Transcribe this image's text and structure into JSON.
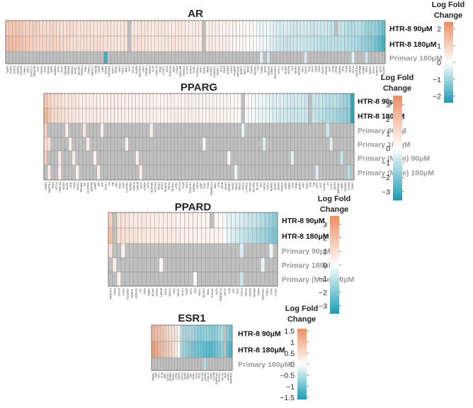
{
  "figure": {
    "colorscale": {
      "low": "#1a9bb3",
      "mid": "#ffffff",
      "high": "#ed8e62",
      "missing": "#c0c0c0"
    }
  },
  "chart_data": [
    {
      "type": "heatmap",
      "title": "AR",
      "rows": [
        "HTR-8 90μM",
        "HTR-8 180μM",
        "Primary 180μM"
      ],
      "primary_rows": [
        2
      ],
      "n_columns": 112,
      "zlim": [
        -2.4,
        2.4
      ],
      "colorbar": {
        "title": [
          "Log Fold",
          "Change"
        ],
        "ticks": [
          2,
          1,
          0,
          -1,
          -2
        ],
        "tick_labels": [
          "2",
          "1",
          "0",
          "−1",
          "−2"
        ]
      },
      "anchor_values": {
        "row0": [
          [
            0,
            1.2
          ],
          [
            10,
            0.8
          ],
          [
            25,
            0.55
          ],
          [
            45,
            0.45
          ],
          [
            60,
            0.3
          ],
          [
            70,
            0.15
          ],
          [
            74,
            -0.1
          ],
          [
            82,
            -0.4
          ],
          [
            95,
            -0.55
          ],
          [
            104,
            -0.8
          ],
          [
            108,
            -1.1
          ],
          [
            111,
            -1.5
          ]
        ],
        "row1": [
          [
            0,
            1.4
          ],
          [
            10,
            0.9
          ],
          [
            25,
            0.6
          ],
          [
            45,
            0.5
          ],
          [
            60,
            0.35
          ],
          [
            70,
            0.2
          ],
          [
            74,
            -0.1
          ],
          [
            82,
            -0.5
          ],
          [
            95,
            -0.65
          ],
          [
            104,
            -0.9
          ],
          [
            108,
            -1.3
          ],
          [
            111,
            -2.0
          ]
        ]
      },
      "primary_cells": [
        [
          29,
          -2.0
        ],
        [
          75,
          -0.3
        ],
        [
          77,
          -0.5
        ],
        [
          88,
          -0.4
        ],
        [
          102,
          -0.3
        ],
        [
          106,
          -0.6
        ]
      ],
      "gaps": [
        [
          0,
          36
        ],
        [
          0,
          58
        ],
        [
          0,
          97
        ],
        [
          1,
          36
        ],
        [
          1,
          58
        ]
      ],
      "column_labels": [
        "SIRPT",
        "PSNT2",
        "COX19",
        "DHRS3",
        "COL5A2",
        "DKKL1",
        "LRP11",
        "KLHDC10",
        "TMEM168",
        "STX7",
        "PDCD5",
        "CDK2",
        "DFNA5",
        "AHRR",
        "ADAM22",
        "EDN2",
        "SNAI2",
        "FAM46B",
        "ZNF689",
        "MICAL3",
        "OVOL1",
        "SEC24D",
        "POLR1A",
        "TOB1",
        "TPRG1",
        "MAN1C1",
        "UNC5B",
        "SGCE",
        "NAB2",
        "SGMS2",
        "TNFRSF9",
        "SPRY1",
        "KRT80",
        "HES1",
        "FOXD1",
        "NRP1",
        "IRX3",
        "KLF13",
        "DUSP6",
        "BHLHE22",
        "CAV2",
        "ST6GAL1",
        "RUNX2",
        "DLX5",
        "GPR176",
        "TRIB2",
        "LPCAT1",
        "SCD5",
        "PLA2G4A",
        "MAFF",
        "CXCL8",
        "GADD45B",
        "TSPAN13",
        "CYTH3",
        "PRR15",
        "FILIP1",
        "CTNNAL1",
        "MUC1",
        "GFRA1",
        "RRAS",
        "ANKRD1",
        "CAMK2N1",
        "TINAGL1",
        "PLK2",
        "PAWR",
        "IGFBP3",
        "LIMS2",
        "SH3BGR",
        "PPP1R3C",
        "ERRFI1",
        "SEPT11",
        "BDNF",
        "PTPRE",
        "RASSF5",
        "FST",
        "TGFB2",
        "EGR2",
        "PHLDA1",
        "GREM1",
        "ARHGAP29",
        "CHSY1",
        "IL11",
        "DUSP5",
        "WNT5A",
        "CLU",
        "SESN3",
        "AMIGO2",
        "HEY1",
        "SOCS2",
        "PLAT",
        "KRT7",
        "CD44",
        "CD59",
        "FOXC2",
        "HMGA2",
        "GJA1",
        "NT5E",
        "ZFP36",
        "SMAD6",
        "IRS2",
        "TXNIP",
        "PDK4",
        "KLF15",
        "ANGPTL4",
        "GPNMB",
        "FKBP5",
        "PER1",
        "NDRG2",
        "SESN1",
        "CDKN1C",
        "ASNS",
        "TSC22D3"
      ]
    },
    {
      "type": "heatmap",
      "title": "PPARG",
      "rows": [
        "HTR-8 90μM",
        "HTR-8 180μM",
        "Primary 90μM",
        "Primary 180μM",
        "Primary (Male) 90μM",
        "Primary (Male) 180μM"
      ],
      "primary_rows": [
        2,
        3,
        4,
        5
      ],
      "n_columns": 88,
      "zlim": [
        -3.6,
        3.6
      ],
      "colorbar": {
        "title": [
          "Log Fold",
          "Change"
        ],
        "ticks": [
          3,
          2,
          1,
          0,
          -1,
          -2,
          -3
        ],
        "tick_labels": [
          "3",
          "2",
          "1",
          "0",
          "−1",
          "−2",
          "−3"
        ]
      },
      "anchor_values": {
        "row0": [
          [
            0,
            1.8
          ],
          [
            2,
            1.0
          ],
          [
            10,
            0.55
          ],
          [
            25,
            0.4
          ],
          [
            45,
            0.3
          ],
          [
            55,
            0.2
          ],
          [
            60,
            -0.2
          ],
          [
            66,
            -0.5
          ],
          [
            75,
            -0.8
          ],
          [
            82,
            -1.1
          ],
          [
            86,
            -1.6
          ],
          [
            87,
            -3.2
          ]
        ],
        "row1": [
          [
            0,
            2.3
          ],
          [
            2,
            1.1
          ],
          [
            10,
            0.6
          ],
          [
            25,
            0.45
          ],
          [
            45,
            0.35
          ],
          [
            55,
            0.25
          ],
          [
            60,
            -0.25
          ],
          [
            66,
            -0.6
          ],
          [
            75,
            -0.9
          ],
          [
            82,
            -1.3
          ],
          [
            86,
            -1.9
          ],
          [
            87,
            -3.4
          ]
        ]
      },
      "primary_cells": [
        [
          0,
          2.0
        ],
        [
          1,
          0.9
        ],
        [
          0,
          1.6
        ],
        [
          1,
          0.6
        ],
        [
          0,
          1.4
        ],
        [
          0,
          1.1
        ],
        [
          4,
          0.7
        ],
        [
          4,
          0.5
        ],
        [
          6,
          0.6
        ],
        [
          7,
          0.5
        ],
        [
          8,
          0.6
        ],
        [
          9,
          0.4
        ],
        [
          11,
          0.8
        ],
        [
          12,
          0.5
        ],
        [
          14,
          0.4
        ],
        [
          15,
          0.6
        ],
        [
          16,
          0.5
        ],
        [
          23,
          0.4
        ],
        [
          26,
          0.5
        ],
        [
          27,
          0.6
        ],
        [
          30,
          0.5
        ],
        [
          45,
          0.3
        ],
        [
          52,
          0.3
        ],
        [
          54,
          -0.3
        ],
        [
          56,
          -0.4
        ],
        [
          62,
          -0.5
        ],
        [
          70,
          -0.4
        ],
        [
          77,
          -0.6
        ],
        [
          80,
          -0.7
        ],
        [
          81,
          -0.5
        ],
        [
          84,
          -0.9
        ],
        [
          86,
          -1.2
        ]
      ],
      "gaps": [
        [
          0,
          56
        ],
        [
          0,
          75
        ],
        [
          1,
          56
        ],
        [
          1,
          75
        ]
      ],
      "column_labels": [
        "FABP4",
        "ANGPTL4",
        "PDK4",
        "CPT1A",
        "HMGCS2",
        "ACAA1",
        "ACADL",
        "CD36",
        "PLIN2",
        "ACOX1",
        "EHHADH",
        "LPL",
        "SLC25A20",
        "ADIPOQ",
        "FABP5",
        "CAT",
        "SCD",
        "ACSL1",
        "GK",
        "DBI",
        "ME1",
        "PCK1",
        "UCP2",
        "CYP27A1",
        "ACADM",
        "HADHA",
        "HADHB",
        "ECH1",
        "ETFDH",
        "CPT2",
        "ALDH3A2",
        "SLC27A1",
        "ACSL3",
        "ACSL5",
        "ACADVL",
        "FADS2",
        "ELOVL6",
        "LPIN1",
        "PEX11A",
        "TXNIP",
        "KLF4",
        "PDZK1IP1",
        "SORBS1",
        "RXRA",
        "AQP7",
        "PLIN1",
        "PLIN4",
        "PPARGC1A",
        "MGLL",
        "LIPE",
        "APOE",
        "APOC3",
        "SREBF1",
        "INSIG1",
        "ABCA1",
        "ABCG1",
        "NR1H3",
        "CYP4A11",
        "RETSAT",
        "TSC22D3",
        "MLYCD",
        "ECI1",
        "DECR1",
        "FGF21",
        "AGPAT2",
        "DGAT1",
        "DGAT2",
        "PNPLA2",
        "CIDEA",
        "CIDEC",
        "G0S2",
        "TRIB3",
        "NR4A1",
        "ATF3",
        "EGR1",
        "FOS",
        "JUN",
        "KLF2",
        "MYC",
        "CCND1",
        "IL6",
        "CXCL1",
        "VEGFA",
        "SERPINE1",
        "MMP1",
        "TNFAIP3",
        "PTGS2",
        "THBS1"
      ]
    },
    {
      "type": "heatmap",
      "title": "PPARD",
      "rows": [
        "HTR-8 90μM",
        "HTR-8 180μM",
        "Primary 90μM",
        "Primary 180μM",
        "Primary (Male) 90μM"
      ],
      "primary_rows": [
        2,
        3,
        4
      ],
      "n_columns": 40,
      "zlim": [
        -3.6,
        3.6
      ],
      "colorbar": {
        "title": [
          "Log Fold",
          "Change"
        ],
        "ticks": [
          3,
          2,
          1,
          0,
          -1,
          -2,
          -3
        ],
        "tick_labels": [
          "3",
          "2",
          "1",
          "0",
          "−1",
          "−2",
          "−3"
        ]
      },
      "anchor_values": {
        "row0": [
          [
            0,
            1.5
          ],
          [
            2,
            0.9
          ],
          [
            10,
            0.6
          ],
          [
            20,
            0.4
          ],
          [
            26,
            0.25
          ],
          [
            28,
            -0.4
          ],
          [
            32,
            -0.7
          ],
          [
            36,
            -1.2
          ],
          [
            39,
            -1.8
          ]
        ],
        "row1": [
          [
            0,
            2.0
          ],
          [
            2,
            1.0
          ],
          [
            10,
            0.7
          ],
          [
            20,
            0.45
          ],
          [
            26,
            0.3
          ],
          [
            28,
            -0.5
          ],
          [
            32,
            -0.9
          ],
          [
            36,
            -1.5
          ],
          [
            39,
            -2.2
          ]
        ]
      },
      "primary_cells": [
        [
          0,
          1.0
        ],
        [
          1,
          0.7
        ],
        [
          2,
          0.6
        ],
        [
          0,
          0.8
        ],
        [
          1,
          0.5
        ],
        [
          2,
          0.4
        ],
        [
          0,
          0.9
        ],
        [
          1,
          0.6
        ],
        [
          2,
          0.5
        ],
        [
          3,
          0.4
        ],
        [
          12,
          0.3
        ],
        [
          20,
          0.2
        ],
        [
          31,
          -0.6
        ],
        [
          36,
          -0.4
        ],
        [
          31,
          -0.9
        ],
        [
          38,
          -0.3
        ]
      ],
      "gaps": [
        [
          0,
          1
        ],
        [
          1,
          1
        ],
        [
          0,
          24
        ]
      ],
      "column_labels": [
        "ANGPTL4",
        "PDK4",
        "CPT1A",
        "PLIN2",
        "SLC25A20",
        "ACADVL",
        "HMGCS2",
        "LPL",
        "CD36",
        "FABP3",
        "ACAA2",
        "ETFDH",
        "HADHB",
        "ECH1",
        "ACOX1",
        "ECI2",
        "DECR1",
        "ACSL1",
        "TXNIP",
        "CPT2",
        "SCD",
        "FADS1",
        "ELOVL5",
        "MGLL",
        "PNPLA2",
        "UCP3",
        "PPARGC1A",
        "KLF15",
        "IL1B",
        "TNF",
        "CCL2",
        "CXCL8",
        "SOCS3",
        "VEGFA",
        "NFKBIA",
        "MMP9",
        "SERPINE1",
        "THBS1",
        "CTGF",
        "CYR61"
      ]
    },
    {
      "type": "heatmap",
      "title": "ESR1",
      "rows": [
        "HTR-8 90μM",
        "HTR-8 180μM",
        "Primary 180μM"
      ],
      "primary_rows": [
        2
      ],
      "n_columns": 28,
      "zlim": [
        -1.6,
        1.6
      ],
      "colorbar": {
        "title": [
          "Log Fold",
          "Change"
        ],
        "ticks": [
          1.5,
          1,
          0.5,
          0,
          -0.5,
          -1,
          -1.5
        ],
        "tick_labels": [
          "1.5",
          "1",
          "0.5",
          "0",
          "−0.5",
          "−1",
          "−1.5"
        ]
      },
      "anchor_values": {
        "row0": [
          [
            0,
            1.1
          ],
          [
            3,
            0.8
          ],
          [
            7,
            0.4
          ],
          [
            9,
            0.1
          ],
          [
            10,
            -0.5
          ],
          [
            14,
            -0.7
          ],
          [
            20,
            -0.8
          ],
          [
            24,
            -0.6
          ],
          [
            27,
            -0.9
          ]
        ],
        "row1": [
          [
            0,
            1.3
          ],
          [
            3,
            0.9
          ],
          [
            7,
            0.5
          ],
          [
            9,
            0.1
          ],
          [
            10,
            -0.6
          ],
          [
            14,
            -1.0
          ],
          [
            20,
            -1.1
          ],
          [
            24,
            -0.8
          ],
          [
            27,
            -1.3
          ]
        ]
      },
      "primary_cells": [
        [
          18,
          -0.5
        ]
      ],
      "gaps": [
        [
          0,
          25
        ],
        [
          1,
          25
        ]
      ],
      "column_labels": [
        "GREB1",
        "PGR",
        "TFF1",
        "MYB",
        "XBP1",
        "CCND1",
        "IGFBP4",
        "PDZK1",
        "CTSD",
        "SIAH2",
        "KRT13",
        "EGR3",
        "AREG",
        "RET",
        "NRIP1",
        "CA12",
        "STC2",
        "SLC7A5",
        "KCNK5",
        "CXCL12",
        "SGK1",
        "IL17RB",
        "SERPINA3",
        "ELOVL2",
        "NPY1R",
        "MGP",
        "OLFM1",
        "ANKRD37"
      ]
    }
  ]
}
